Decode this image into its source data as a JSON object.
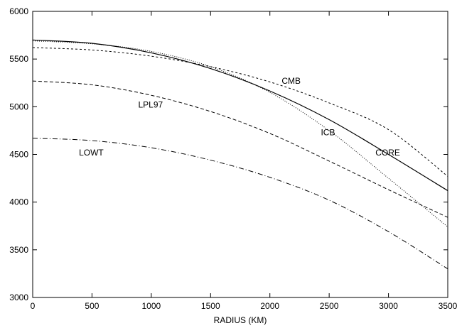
{
  "chart_data": {
    "type": "line",
    "title": "",
    "xlabel": "RADIUS (KM)",
    "ylabel": "",
    "xlim": [
      0,
      3500
    ],
    "ylim": [
      3000,
      6000
    ],
    "xticks": [
      0,
      500,
      1000,
      1500,
      2000,
      2500,
      3000,
      3500
    ],
    "yticks": [
      3000,
      3500,
      4000,
      4500,
      5000,
      5500,
      6000
    ],
    "grid": false,
    "legend": "none",
    "series": [
      {
        "name": "CORE",
        "dash": "solid",
        "x": [
          0,
          500,
          1000,
          1500,
          2000,
          2500,
          3000,
          3500
        ],
        "y": [
          5700,
          5665,
          5565,
          5400,
          5165,
          4865,
          4500,
          4120
        ]
      },
      {
        "name": "CMB",
        "dash": "dotted",
        "x": [
          0,
          500,
          1000,
          1500,
          2000,
          2500,
          3000,
          3500
        ],
        "y": [
          5620,
          5595,
          5530,
          5420,
          5260,
          5040,
          4760,
          4270
        ]
      },
      {
        "name": "ICB",
        "dash": "fine-dotted",
        "x": [
          0,
          500,
          1000,
          1500,
          2000,
          2500,
          3000,
          3500
        ],
        "y": [
          5690,
          5660,
          5580,
          5420,
          5150,
          4750,
          4250,
          3740
        ]
      },
      {
        "name": "LPL97",
        "dash": "dashed",
        "x": [
          0,
          500,
          1000,
          1500,
          2000,
          2500,
          3000,
          3500
        ],
        "y": [
          5270,
          5230,
          5120,
          4950,
          4720,
          4430,
          4130,
          3840
        ]
      },
      {
        "name": "LOWT",
        "dash": "dash-dot",
        "x": [
          0,
          500,
          1000,
          1500,
          2000,
          2500,
          3000,
          3500
        ],
        "y": [
          4670,
          4645,
          4570,
          4440,
          4260,
          4020,
          3690,
          3300
        ]
      }
    ],
    "annotations": [
      {
        "text": "CMB",
        "x": 2100,
        "y": 5240
      },
      {
        "text": "LPL97",
        "x": 890,
        "y": 4990
      },
      {
        "text": "ICB",
        "x": 2430,
        "y": 4700
      },
      {
        "text": "CORE",
        "x": 2890,
        "y": 4490
      },
      {
        "text": "LOWT",
        "x": 390,
        "y": 4490
      }
    ]
  }
}
